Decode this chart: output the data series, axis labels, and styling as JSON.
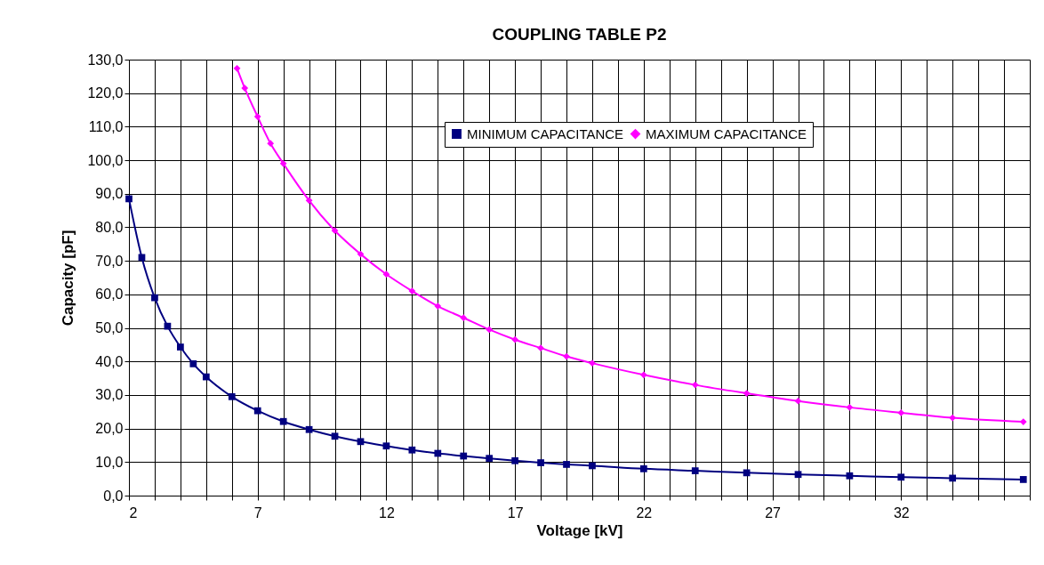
{
  "chart_data": {
    "type": "line",
    "title": "COUPLING TABLE P2",
    "xlabel": "Voltage [kV]",
    "ylabel": "Capacity [pF]",
    "xlim": [
      2,
      37
    ],
    "ylim": [
      0,
      130
    ],
    "xticks": [
      2,
      {
        "value": 3,
        "label": null
      },
      {
        "value": 4,
        "label": null
      },
      {
        "value": 5,
        "label": null
      },
      {
        "value": 6,
        "label": null
      },
      7,
      {
        "value": 8,
        "label": null
      },
      {
        "value": 9,
        "label": null
      },
      {
        "value": 10,
        "label": null
      },
      {
        "value": 11,
        "label": null
      },
      12,
      {
        "value": 13,
        "label": null
      },
      {
        "value": 14,
        "label": null
      },
      {
        "value": 15,
        "label": null
      },
      {
        "value": 16,
        "label": null
      },
      17,
      {
        "value": 18,
        "label": null
      },
      {
        "value": 19,
        "label": null
      },
      {
        "value": 20,
        "label": null
      },
      {
        "value": 21,
        "label": null
      },
      22,
      {
        "value": 23,
        "label": null
      },
      {
        "value": 24,
        "label": null
      },
      {
        "value": 25,
        "label": null
      },
      {
        "value": 26,
        "label": null
      },
      27,
      {
        "value": 28,
        "label": null
      },
      {
        "value": 29,
        "label": null
      },
      {
        "value": 30,
        "label": null
      },
      {
        "value": 31,
        "label": null
      },
      32,
      {
        "value": 33,
        "label": null
      },
      {
        "value": 34,
        "label": null
      },
      {
        "value": 35,
        "label": null
      },
      {
        "value": 36,
        "label": null
      },
      {
        "value": 37,
        "label": null
      }
    ],
    "yticks": [
      {
        "value": 0,
        "label": "0,0"
      },
      {
        "value": 10,
        "label": "10,0"
      },
      {
        "value": 20,
        "label": "20,0"
      },
      {
        "value": 30,
        "label": "30,0"
      },
      {
        "value": 40,
        "label": "40,0"
      },
      {
        "value": 50,
        "label": "50,0"
      },
      {
        "value": 60,
        "label": "60,0"
      },
      {
        "value": 70,
        "label": "70,0"
      },
      {
        "value": 80,
        "label": "80,0"
      },
      {
        "value": 90,
        "label": "90,0"
      },
      {
        "value": 100,
        "label": "100,0"
      },
      {
        "value": 110,
        "label": "110,0"
      },
      {
        "value": 120,
        "label": "120,0"
      },
      {
        "value": 130,
        "label": "130,0"
      }
    ],
    "grid": true,
    "legend": "top right",
    "series": [
      {
        "name": "MINIMUM CAPACITANCE",
        "color": "#000080",
        "marker": "square",
        "x": [
          2,
          2.5,
          3,
          3.5,
          4,
          4.5,
          5,
          6,
          7,
          8,
          9,
          10,
          11,
          12,
          13,
          14,
          15,
          16,
          17,
          18,
          19,
          20,
          22,
          24,
          26,
          28,
          30,
          32,
          34,
          36.75
        ],
        "values": [
          88.5,
          71,
          59,
          50.5,
          44.3,
          39.3,
          35.4,
          29.5,
          25.3,
          22.1,
          19.7,
          17.7,
          16.1,
          14.8,
          13.6,
          12.6,
          11.8,
          11.1,
          10.4,
          9.8,
          9.3,
          8.9,
          8.0,
          7.4,
          6.8,
          6.3,
          5.9,
          5.5,
          5.2,
          4.8
        ]
      },
      {
        "name": "MAXIMUM CAPACITANCE",
        "color": "#ff00ff",
        "marker": "diamond",
        "x": [
          6.2,
          6.5,
          7,
          7.5,
          8,
          9,
          10,
          11,
          12,
          13,
          14,
          15,
          16,
          17,
          18,
          19,
          20,
          22,
          24,
          26,
          28,
          30,
          32,
          34,
          36.75
        ],
        "values": [
          127.4,
          121.5,
          113,
          105,
          99,
          88,
          79,
          72,
          66,
          61,
          56.5,
          53,
          49.5,
          46.5,
          44,
          41.5,
          39.5,
          36,
          33,
          30.5,
          28.2,
          26.3,
          24.7,
          23.2,
          22
        ]
      }
    ]
  }
}
